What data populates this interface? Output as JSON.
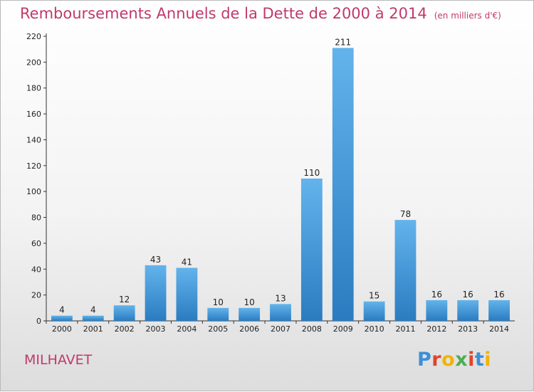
{
  "header": {
    "title": "Remboursements Annuels de la Dette de 2000 à 2014",
    "subtitle": "(en milliers d'€)"
  },
  "footer": {
    "commune": "MILHAVET",
    "logo_text": "Proxiti"
  },
  "colors": {
    "title": "#c0396c",
    "bar_top": "#63b3ec",
    "bar_bottom": "#2a7cc0",
    "logo_letters": [
      "#3e8fd6",
      "#e0442a",
      "#f0b400",
      "#4caf50",
      "#e0442a",
      "#3e8fd6",
      "#f0b400"
    ]
  },
  "chart_data": {
    "type": "bar",
    "title": "Remboursements Annuels de la Dette de 2000 à 2014",
    "xlabel": "",
    "ylabel": "",
    "ylim": [
      0,
      220
    ],
    "yticks": [
      0,
      20,
      40,
      60,
      80,
      100,
      120,
      140,
      160,
      180,
      200,
      220
    ],
    "grid": false,
    "categories": [
      "2000",
      "2001",
      "2002",
      "2003",
      "2004",
      "2005",
      "2006",
      "2007",
      "2008",
      "2009",
      "2010",
      "2011",
      "2012",
      "2013",
      "2014"
    ],
    "values": [
      4,
      4,
      12,
      43,
      41,
      10,
      10,
      13,
      110,
      211,
      15,
      78,
      16,
      16,
      16
    ]
  }
}
